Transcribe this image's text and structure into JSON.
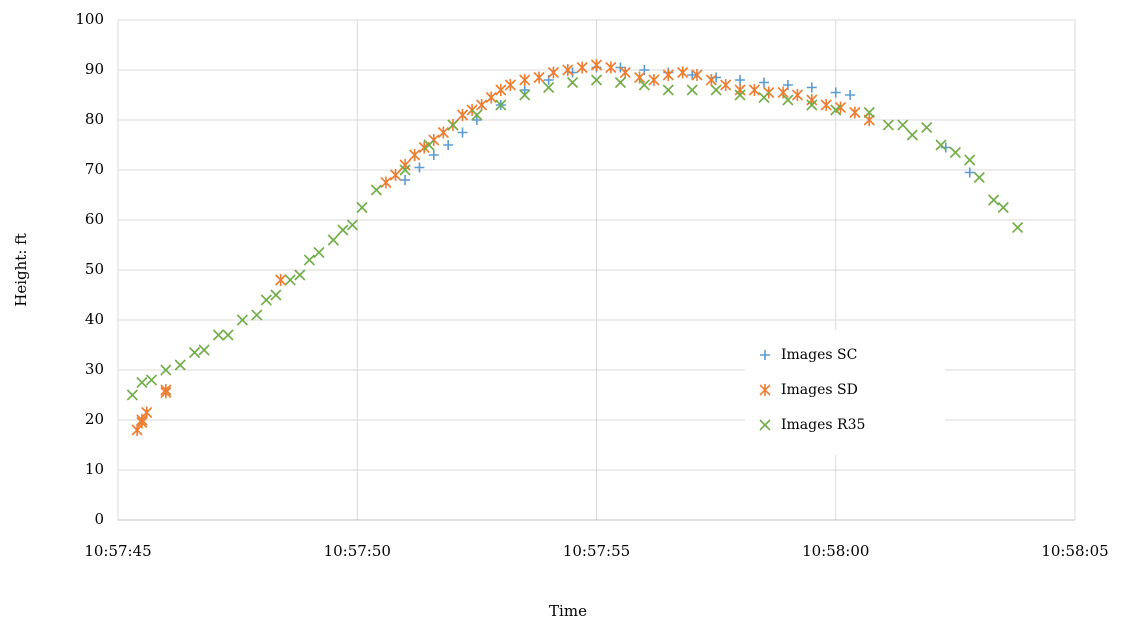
{
  "chart_data": {
    "type": "scatter",
    "x_label": "Time",
    "y_label": "Height: ft",
    "xlim": [
      39465,
      39485
    ],
    "xticks": [
      {
        "value": 39465,
        "label": "10:57:45"
      },
      {
        "value": 39470,
        "label": "10:57:50"
      },
      {
        "value": 39475,
        "label": "10:57:55"
      },
      {
        "value": 39480,
        "label": "10:58:00"
      },
      {
        "value": 39485,
        "label": "10:58:05"
      }
    ],
    "ylim": [
      0,
      100
    ],
    "yticks": [
      0,
      10,
      20,
      30,
      40,
      50,
      60,
      70,
      80,
      90,
      100
    ],
    "grid": true,
    "legend": "center-right",
    "series": [
      {
        "name": "Images SC",
        "color": "#5b9bd5",
        "marker": "plus",
        "x": [
          39471.0,
          39471.3,
          39471.6,
          39471.9,
          39472.2,
          39472.5,
          39473.0,
          39473.5,
          39474.0,
          39474.5,
          39475.0,
          39475.5,
          39476.0,
          39476.5,
          39477.0,
          39477.5,
          39478.0,
          39478.5,
          39479.0,
          39479.5,
          39480.0,
          39480.3,
          39482.3,
          39482.8
        ],
        "values": [
          68,
          70.5,
          73,
          75,
          77.5,
          80,
          83,
          86,
          88,
          89.5,
          90.5,
          90.5,
          90,
          89.5,
          89,
          88.5,
          88,
          87.5,
          87,
          86.5,
          85.5,
          85,
          74.5,
          69.5
        ]
      },
      {
        "name": "Images SD",
        "color": "#ed7d31",
        "marker": "star",
        "x": [
          39465.4,
          39465.5,
          39465.5,
          39465.6,
          39466.0,
          39466.0,
          39468.4,
          39470.6,
          39470.8,
          39471.0,
          39471.2,
          39471.4,
          39471.6,
          39471.8,
          39472.0,
          39472.2,
          39472.4,
          39472.6,
          39472.8,
          39473.0,
          39473.2,
          39473.5,
          39473.8,
          39474.1,
          39474.4,
          39474.7,
          39475.0,
          39475.3,
          39475.6,
          39475.9,
          39476.2,
          39476.5,
          39476.8,
          39477.1,
          39477.4,
          39477.7,
          39478.0,
          39478.3,
          39478.6,
          39478.9,
          39479.2,
          39479.5,
          39479.8,
          39480.1,
          39480.4,
          39480.7
        ],
        "values": [
          18,
          20,
          19.5,
          21.5,
          26,
          25.5,
          48,
          67.5,
          69,
          71,
          73,
          74.5,
          76,
          77.5,
          79,
          81,
          82,
          83,
          84.5,
          86,
          87,
          88,
          88.5,
          89.5,
          90,
          90.5,
          91,
          90.5,
          89.5,
          88.5,
          88,
          89,
          89.5,
          89,
          88,
          87,
          86,
          86,
          85.5,
          85.5,
          85,
          84,
          83,
          82.5,
          81.5,
          80
        ]
      },
      {
        "name": "Images R35",
        "color": "#70ad47",
        "marker": "cross",
        "x": [
          39465.3,
          39465.5,
          39465.7,
          39466.0,
          39466.3,
          39466.6,
          39466.8,
          39467.1,
          39467.3,
          39467.6,
          39467.9,
          39468.1,
          39468.3,
          39468.6,
          39468.8,
          39469.0,
          39469.2,
          39469.5,
          39469.7,
          39469.9,
          39470.1,
          39470.4,
          39471.0,
          39471.5,
          39472.0,
          39472.5,
          39473.0,
          39473.5,
          39474.0,
          39474.5,
          39475.0,
          39475.5,
          39476.0,
          39476.5,
          39477.0,
          39477.5,
          39478.0,
          39478.5,
          39479.0,
          39479.5,
          39480.0,
          39480.7,
          39481.1,
          39481.4,
          39481.6,
          39481.9,
          39482.2,
          39482.5,
          39482.8,
          39483.0,
          39483.3,
          39483.5,
          39483.8
        ],
        "values": [
          25,
          27.5,
          28,
          30,
          31,
          33.5,
          34,
          37,
          37,
          40,
          41,
          44,
          45,
          48,
          49,
          52,
          53.5,
          56,
          58,
          59,
          62.5,
          66,
          70,
          75,
          79,
          81,
          83,
          85,
          86.5,
          87.5,
          88,
          87.5,
          87,
          86,
          86,
          86,
          85,
          84.5,
          84,
          83,
          82,
          81.5,
          79,
          79,
          77,
          78.5,
          75,
          73.5,
          72,
          68.5,
          64,
          62.5,
          58.5
        ]
      }
    ]
  }
}
